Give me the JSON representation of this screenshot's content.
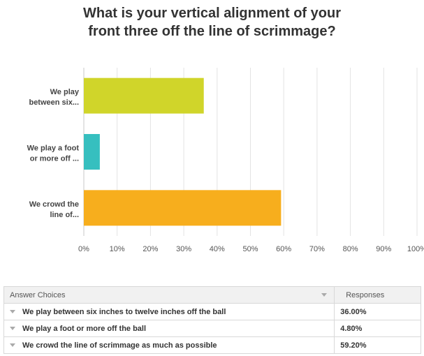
{
  "chart_data": {
    "type": "bar",
    "orientation": "horizontal",
    "title_lines": [
      "What is your vertical alignment of your",
      "front three off the line of scrimmage?"
    ],
    "categories": [
      [
        "We play",
        "between six..."
      ],
      [
        "We play a foot",
        "or more off ..."
      ],
      [
        "We crowd the",
        "line of..."
      ]
    ],
    "values": [
      36.0,
      4.8,
      59.2
    ],
    "colors": [
      "#d0d52a",
      "#36bfbf",
      "#f7ae1d"
    ],
    "xlim": [
      0,
      100
    ],
    "xticks": [
      "0%",
      "10%",
      "20%",
      "30%",
      "40%",
      "50%",
      "60%",
      "70%",
      "80%",
      "90%",
      "100%"
    ],
    "grid": true
  },
  "table": {
    "header_choice": "Answer Choices",
    "header_responses": "Responses",
    "rows": [
      {
        "label": "We play between six inches to twelve inches off the ball",
        "pct": "36.00%"
      },
      {
        "label": "We play a foot or more off the ball",
        "pct": "4.80%"
      },
      {
        "label": "We crowd the line of scrimmage as much as possible",
        "pct": "59.20%"
      }
    ]
  }
}
